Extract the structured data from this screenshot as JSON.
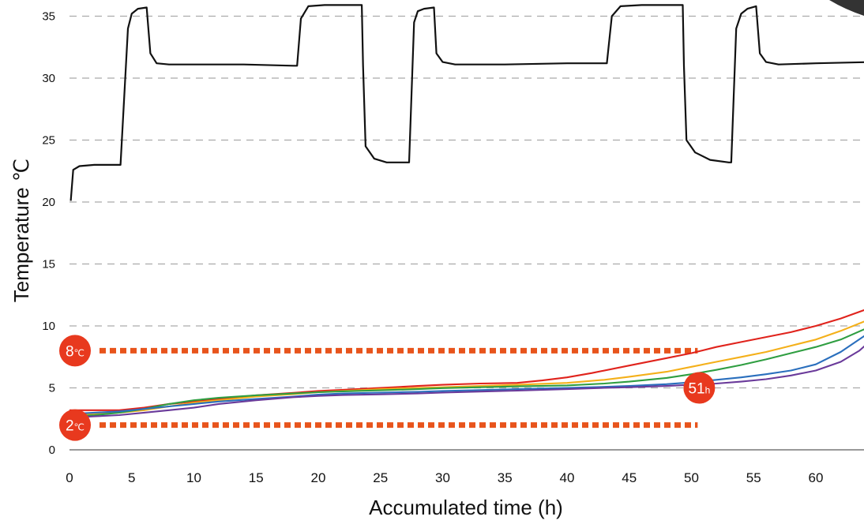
{
  "chart_data": {
    "type": "line",
    "xlabel": "Accumulated time (h)",
    "ylabel": "Temperature ℃",
    "xlim": [
      0,
      64.5
    ],
    "ylim": [
      0,
      36.5
    ],
    "x_ticks": [
      "0",
      "5",
      "10",
      "15",
      "20",
      "25",
      "30",
      "35",
      "40",
      "45",
      "50",
      "55",
      "60"
    ],
    "y_ticks": [
      "0",
      "5",
      "10",
      "15",
      "20",
      "25",
      "30",
      "35"
    ],
    "grid": "horizontal dashed",
    "colors": {
      "ambient": "#111111",
      "red": "#e0231c",
      "orange": "#f4b01a",
      "green": "#2f9e41",
      "blue": "#2a6fbd",
      "purple": "#6a3a9a",
      "markers": "#e8541c",
      "badge": "#e8391e",
      "grid": "#aaaaaa"
    },
    "series": [
      {
        "key": "ambient",
        "color": "#111111",
        "points": [
          [
            0.1,
            20.1
          ],
          [
            0.3,
            22.6
          ],
          [
            0.8,
            22.9
          ],
          [
            2,
            23.0
          ],
          [
            3,
            23.0
          ],
          [
            4,
            23.0
          ],
          [
            4.1,
            23.0
          ],
          [
            4.7,
            34.0
          ],
          [
            5.0,
            35.2
          ],
          [
            5.5,
            35.6
          ],
          [
            6.2,
            35.7
          ],
          [
            6.5,
            32.0
          ],
          [
            7,
            31.2
          ],
          [
            8,
            31.1
          ],
          [
            10,
            31.1
          ],
          [
            14,
            31.1
          ],
          [
            18,
            31.0
          ],
          [
            18.3,
            31.0
          ],
          [
            18.6,
            34.8
          ],
          [
            19.2,
            35.8
          ],
          [
            20.5,
            35.9
          ],
          [
            22,
            35.9
          ],
          [
            23.5,
            35.9
          ],
          [
            23.6,
            31.0
          ],
          [
            23.8,
            24.5
          ],
          [
            24.5,
            23.5
          ],
          [
            25.5,
            23.2
          ],
          [
            27,
            23.2
          ],
          [
            27.3,
            23.2
          ],
          [
            27.7,
            34.5
          ],
          [
            28,
            35.4
          ],
          [
            28.5,
            35.6
          ],
          [
            29.3,
            35.7
          ],
          [
            29.5,
            32.0
          ],
          [
            30,
            31.3
          ],
          [
            31,
            31.1
          ],
          [
            35,
            31.1
          ],
          [
            40,
            31.2
          ],
          [
            43,
            31.2
          ],
          [
            43.2,
            31.2
          ],
          [
            43.6,
            35.0
          ],
          [
            44.3,
            35.8
          ],
          [
            46,
            35.9
          ],
          [
            48,
            35.9
          ],
          [
            49.3,
            35.9
          ],
          [
            49.4,
            31.0
          ],
          [
            49.6,
            25.0
          ],
          [
            50.3,
            24.0
          ],
          [
            51.5,
            23.4
          ],
          [
            53,
            23.2
          ],
          [
            53.2,
            23.2
          ],
          [
            53.6,
            34.0
          ],
          [
            54,
            35.2
          ],
          [
            54.5,
            35.6
          ],
          [
            55.2,
            35.8
          ],
          [
            55.5,
            32.0
          ],
          [
            56,
            31.3
          ],
          [
            57,
            31.1
          ],
          [
            60,
            31.2
          ],
          [
            64.5,
            31.3
          ]
        ]
      },
      {
        "key": "red",
        "color": "#e0231c",
        "points": [
          [
            0,
            3.2
          ],
          [
            2,
            3.2
          ],
          [
            4,
            3.2
          ],
          [
            6,
            3.4
          ],
          [
            8,
            3.7
          ],
          [
            10,
            3.9
          ],
          [
            12,
            4.1
          ],
          [
            15,
            4.4
          ],
          [
            18,
            4.6
          ],
          [
            20,
            4.75
          ],
          [
            22,
            4.85
          ],
          [
            25,
            5.0
          ],
          [
            28,
            5.15
          ],
          [
            30,
            5.25
          ],
          [
            33,
            5.35
          ],
          [
            36,
            5.4
          ],
          [
            38,
            5.6
          ],
          [
            40,
            5.85
          ],
          [
            42,
            6.2
          ],
          [
            45,
            6.8
          ],
          [
            48,
            7.4
          ],
          [
            50,
            7.8
          ],
          [
            52,
            8.3
          ],
          [
            54,
            8.7
          ],
          [
            56,
            9.1
          ],
          [
            58,
            9.5
          ],
          [
            60,
            10.0
          ],
          [
            62,
            10.6
          ],
          [
            64.5,
            11.5
          ]
        ]
      },
      {
        "key": "orange",
        "color": "#f4b01a",
        "points": [
          [
            0,
            2.8
          ],
          [
            2,
            2.9
          ],
          [
            4,
            3.0
          ],
          [
            6,
            3.2
          ],
          [
            8,
            3.5
          ],
          [
            10,
            3.8
          ],
          [
            12,
            4.0
          ],
          [
            15,
            4.3
          ],
          [
            18,
            4.5
          ],
          [
            20,
            4.65
          ],
          [
            22,
            4.75
          ],
          [
            25,
            4.9
          ],
          [
            28,
            5.0
          ],
          [
            30,
            5.05
          ],
          [
            33,
            5.15
          ],
          [
            36,
            5.25
          ],
          [
            40,
            5.4
          ],
          [
            43,
            5.65
          ],
          [
            45,
            5.9
          ],
          [
            48,
            6.3
          ],
          [
            50,
            6.7
          ],
          [
            52,
            7.1
          ],
          [
            54,
            7.5
          ],
          [
            56,
            7.9
          ],
          [
            58,
            8.4
          ],
          [
            60,
            8.9
          ],
          [
            62,
            9.6
          ],
          [
            64.5,
            10.6
          ]
        ]
      },
      {
        "key": "green",
        "color": "#2f9e41",
        "points": [
          [
            0,
            2.7
          ],
          [
            2,
            2.8
          ],
          [
            4,
            3.0
          ],
          [
            6,
            3.3
          ],
          [
            8,
            3.7
          ],
          [
            10,
            4.0
          ],
          [
            12,
            4.2
          ],
          [
            15,
            4.4
          ],
          [
            18,
            4.55
          ],
          [
            20,
            4.65
          ],
          [
            22,
            4.72
          ],
          [
            25,
            4.8
          ],
          [
            28,
            4.9
          ],
          [
            30,
            4.98
          ],
          [
            33,
            5.05
          ],
          [
            36,
            5.12
          ],
          [
            40,
            5.2
          ],
          [
            43,
            5.35
          ],
          [
            45,
            5.5
          ],
          [
            48,
            5.8
          ],
          [
            50,
            6.1
          ],
          [
            52,
            6.45
          ],
          [
            54,
            6.85
          ],
          [
            56,
            7.3
          ],
          [
            58,
            7.8
          ],
          [
            60,
            8.3
          ],
          [
            62,
            8.9
          ],
          [
            64.5,
            10.0
          ]
        ]
      },
      {
        "key": "blue",
        "color": "#2a6fbd",
        "points": [
          [
            0,
            2.9
          ],
          [
            2,
            3.0
          ],
          [
            4,
            3.1
          ],
          [
            6,
            3.3
          ],
          [
            8,
            3.5
          ],
          [
            10,
            3.7
          ],
          [
            12,
            3.9
          ],
          [
            15,
            4.1
          ],
          [
            18,
            4.3
          ],
          [
            20,
            4.45
          ],
          [
            22,
            4.55
          ],
          [
            25,
            4.62
          ],
          [
            28,
            4.68
          ],
          [
            30,
            4.75
          ],
          [
            33,
            4.82
          ],
          [
            36,
            4.9
          ],
          [
            40,
            5.0
          ],
          [
            43,
            5.08
          ],
          [
            45,
            5.15
          ],
          [
            48,
            5.3
          ],
          [
            50,
            5.45
          ],
          [
            52,
            5.65
          ],
          [
            54,
            5.85
          ],
          [
            56,
            6.1
          ],
          [
            58,
            6.4
          ],
          [
            60,
            6.9
          ],
          [
            62,
            7.9
          ],
          [
            64.5,
            9.6
          ]
        ]
      },
      {
        "key": "purple",
        "color": "#6a3a9a",
        "points": [
          [
            0,
            2.6
          ],
          [
            2,
            2.7
          ],
          [
            4,
            2.8
          ],
          [
            6,
            3.0
          ],
          [
            8,
            3.2
          ],
          [
            10,
            3.4
          ],
          [
            12,
            3.7
          ],
          [
            15,
            4.0
          ],
          [
            18,
            4.25
          ],
          [
            20,
            4.35
          ],
          [
            22,
            4.42
          ],
          [
            25,
            4.48
          ],
          [
            28,
            4.55
          ],
          [
            30,
            4.62
          ],
          [
            33,
            4.7
          ],
          [
            36,
            4.78
          ],
          [
            40,
            4.9
          ],
          [
            43,
            5.0
          ],
          [
            45,
            5.05
          ],
          [
            48,
            5.15
          ],
          [
            50,
            5.25
          ],
          [
            52,
            5.35
          ],
          [
            54,
            5.5
          ],
          [
            56,
            5.7
          ],
          [
            58,
            6.0
          ],
          [
            60,
            6.4
          ],
          [
            62,
            7.1
          ],
          [
            63.5,
            8.0
          ],
          [
            64.5,
            8.9
          ]
        ]
      }
    ],
    "reference_lines": [
      {
        "y": 8,
        "x_end": 50.5,
        "label": "8",
        "unit": "℃"
      },
      {
        "y": 2,
        "x_end": 50.5,
        "label": "2",
        "unit": "℃"
      }
    ],
    "annotations": [
      {
        "x": 50.5,
        "y": 5,
        "label": "51",
        "unit": "h"
      }
    ]
  }
}
